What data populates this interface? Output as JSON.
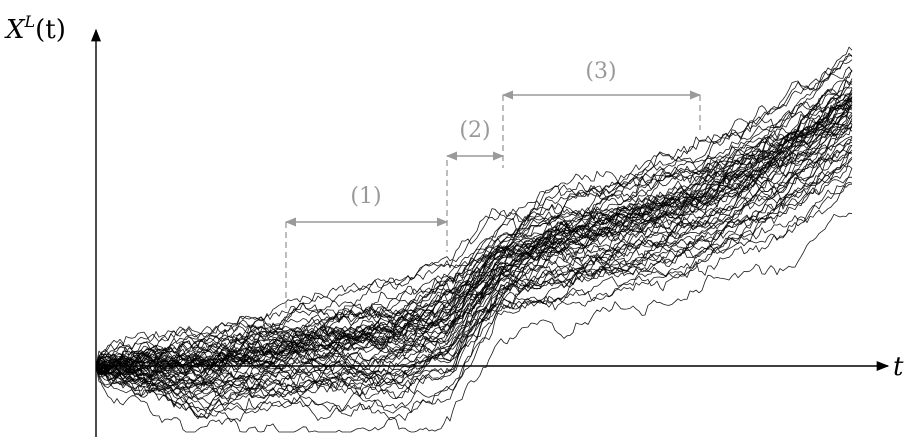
{
  "axes": {
    "y_label_main": "X",
    "y_label_sup": "L",
    "y_label_arg": "(t)",
    "x_label": "t"
  },
  "phases": [
    {
      "label": "(1)"
    },
    {
      "label": "(2)"
    },
    {
      "label": "(3)"
    }
  ],
  "colors": {
    "axis": "#000000",
    "annotation": "#999999",
    "paths": "#000000"
  },
  "paths": {
    "count": 60
  }
}
